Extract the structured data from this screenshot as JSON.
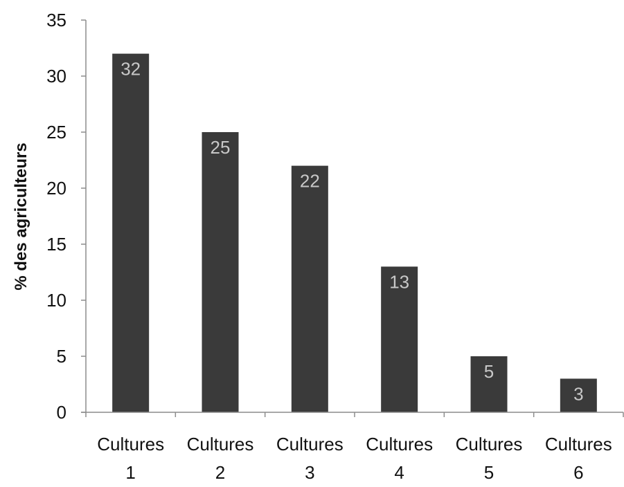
{
  "chart_data": {
    "type": "bar",
    "title": "",
    "xlabel": "",
    "ylabel": "% des agriculteurs",
    "ylim": [
      0,
      35
    ],
    "yticks": [
      0,
      5,
      10,
      15,
      20,
      25,
      30,
      35
    ],
    "categories": [
      [
        "Cultures",
        "1"
      ],
      [
        "Cultures",
        "2"
      ],
      [
        "Cultures",
        "3"
      ],
      [
        "Cultures",
        "4"
      ],
      [
        "Cultures",
        "5"
      ],
      [
        "Cultures",
        "6"
      ]
    ],
    "values": [
      32,
      25,
      22,
      13,
      5,
      3
    ],
    "data_labels": [
      "32",
      "25",
      "22",
      "13",
      "5",
      "3"
    ],
    "grid": false,
    "legend": "none",
    "colors": {
      "bar": "#3a3a3a",
      "data_label": "#c8c8c8",
      "axis": "#8c8c8c"
    }
  }
}
